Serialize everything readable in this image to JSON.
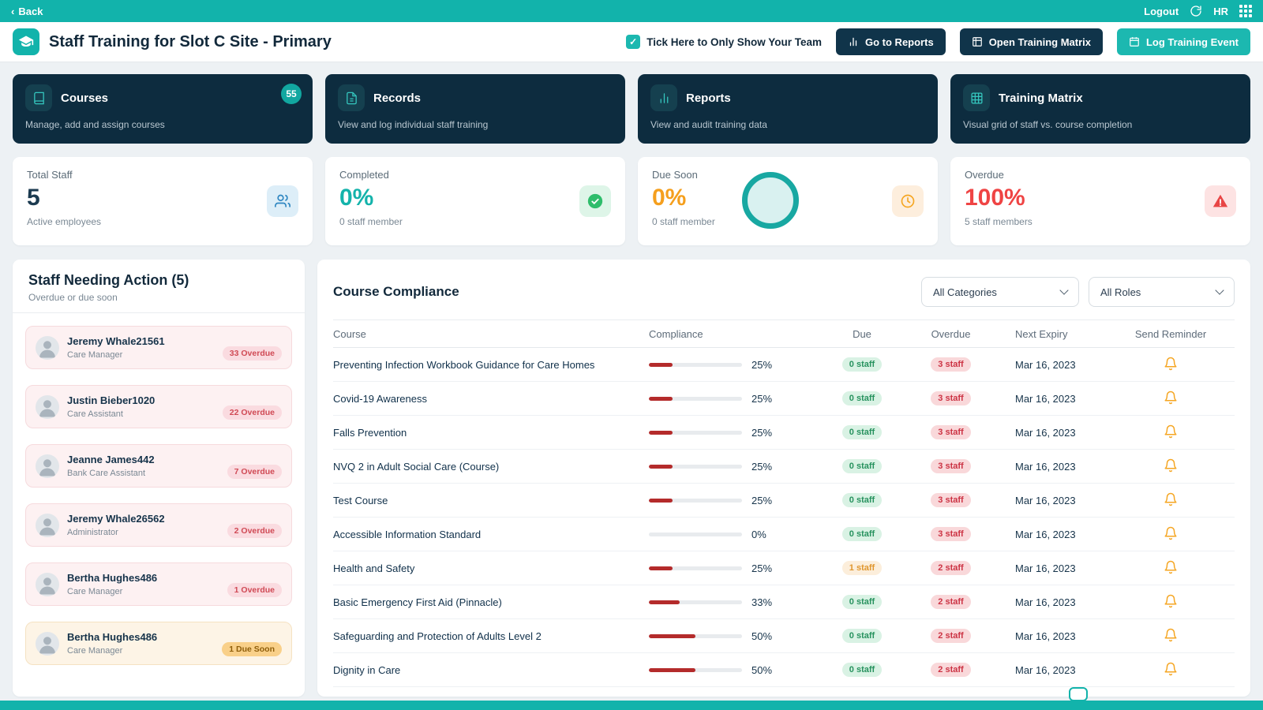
{
  "colors": {
    "accent_teal": "#12b3ab",
    "navy": "#0d2c3f",
    "red": "#ef4444",
    "orange": "#f59f1d",
    "green": "#27925e",
    "bar_red": "#b42b2b"
  },
  "topbar": {
    "back_label": "Back",
    "logout_label": "Logout",
    "hr_label": "HR"
  },
  "header": {
    "title": "Staff Training for Slot C Site - Primary",
    "team_checkbox_label": "Tick Here to Only Show Your Team",
    "buttons": [
      {
        "label": "Go to Reports"
      },
      {
        "label": "Open Training Matrix"
      },
      {
        "label": "Log Training Event"
      }
    ]
  },
  "nav_cards": [
    {
      "title": "Courses",
      "desc": "Manage, add and assign courses",
      "badge": "55"
    },
    {
      "title": "Records",
      "desc": "View and log individual staff training"
    },
    {
      "title": "Reports",
      "desc": "View and audit training data"
    },
    {
      "title": "Training Matrix",
      "desc": "Visual grid of staff vs. course completion"
    }
  ],
  "stat_cards": [
    {
      "label": "Total Staff",
      "value": "5",
      "sub": "Active employees"
    },
    {
      "label": "Completed",
      "value": "0%",
      "sub": "0 staff member"
    },
    {
      "label": "Due Soon",
      "value": "0%",
      "sub": "0 staff member"
    },
    {
      "label": "Overdue",
      "value": "100%",
      "sub": "5 staff members"
    }
  ],
  "staff_panel": {
    "title": "Staff Needing Action (5)",
    "subtitle": "Overdue or due soon",
    "items": [
      {
        "name": "Jeremy Whale21561",
        "role": "Care Manager",
        "badge": "33 Overdue",
        "type": "overdue"
      },
      {
        "name": "Justin Bieber1020",
        "role": "Care Assistant",
        "badge": "22 Overdue",
        "type": "overdue"
      },
      {
        "name": "Jeanne James442",
        "role": "Bank Care Assistant",
        "badge": "7 Overdue",
        "type": "overdue"
      },
      {
        "name": "Jeremy Whale26562",
        "role": "Administrator",
        "badge": "2 Overdue",
        "type": "overdue"
      },
      {
        "name": "Bertha Hughes486",
        "role": "Care Manager",
        "badge": "1 Overdue",
        "type": "overdue"
      },
      {
        "name": "Bertha Hughes486",
        "role": "Care Manager",
        "badge": "1 Due Soon",
        "type": "due-soon"
      }
    ]
  },
  "compliance": {
    "title": "Course Compliance",
    "filters": {
      "categories": "All Categories",
      "roles": "All Roles"
    },
    "columns": [
      "Course",
      "Compliance",
      "Due",
      "Overdue",
      "Next Expiry",
      "Send Reminder"
    ],
    "rows": [
      {
        "course": "Preventing Infection Workbook Guidance for Care Homes",
        "compliance_pct": 25,
        "compliance_label": "25%",
        "due": "0 staff",
        "due_status": "none",
        "overdue": "3 staff",
        "next_expiry": "Mar 16, 2023"
      },
      {
        "course": "Covid-19 Awareness",
        "compliance_pct": 25,
        "compliance_label": "25%",
        "due": "0 staff",
        "due_status": "none",
        "overdue": "3 staff",
        "next_expiry": "Mar 16, 2023"
      },
      {
        "course": "Falls Prevention",
        "compliance_pct": 25,
        "compliance_label": "25%",
        "due": "0 staff",
        "due_status": "none",
        "overdue": "3 staff",
        "next_expiry": "Mar 16, 2023"
      },
      {
        "course": "NVQ 2 in Adult Social Care (Course)",
        "compliance_pct": 25,
        "compliance_label": "25%",
        "due": "0 staff",
        "due_status": "none",
        "overdue": "3 staff",
        "next_expiry": "Mar 16, 2023"
      },
      {
        "course": "Test Course",
        "compliance_pct": 25,
        "compliance_label": "25%",
        "due": "0 staff",
        "due_status": "none",
        "overdue": "3 staff",
        "next_expiry": "Mar 16, 2023"
      },
      {
        "course": "Accessible Information Standard",
        "compliance_pct": 0,
        "compliance_label": "0%",
        "due": "0 staff",
        "due_status": "none",
        "overdue": "3 staff",
        "next_expiry": "Mar 16, 2023"
      },
      {
        "course": "Health and Safety",
        "compliance_pct": 25,
        "compliance_label": "25%",
        "due": "1 staff",
        "due_status": "pending",
        "overdue": "2 staff",
        "next_expiry": "Mar 16, 2023"
      },
      {
        "course": "Basic Emergency First Aid (Pinnacle)",
        "compliance_pct": 33,
        "compliance_label": "33%",
        "due": "0 staff",
        "due_status": "none",
        "overdue": "2 staff",
        "next_expiry": "Mar 16, 2023"
      },
      {
        "course": "Safeguarding and Protection of Adults Level 2",
        "compliance_pct": 50,
        "compliance_label": "50%",
        "due": "0 staff",
        "due_status": "none",
        "overdue": "2 staff",
        "next_expiry": "Mar 16, 2023"
      },
      {
        "course": "Dignity in Care",
        "compliance_pct": 50,
        "compliance_label": "50%",
        "due": "0 staff",
        "due_status": "none",
        "overdue": "2 staff",
        "next_expiry": "Mar 16, 2023"
      }
    ]
  }
}
